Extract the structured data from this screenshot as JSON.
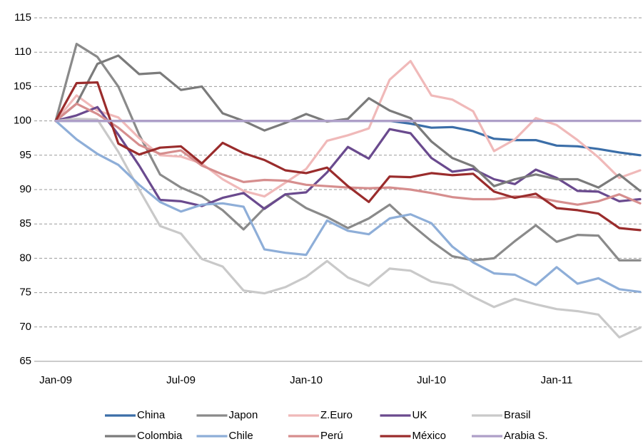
{
  "chart_data": {
    "type": "line",
    "categories": [
      "Jan-09",
      null,
      null,
      null,
      null,
      null,
      "Jul-09",
      null,
      null,
      null,
      null,
      null,
      "Jan-10",
      null,
      null,
      null,
      null,
      null,
      "Jul-10",
      null,
      null,
      null,
      null,
      null,
      "Jan-11",
      null,
      null,
      null,
      null
    ],
    "ylim": [
      65,
      115
    ],
    "yticks": [
      65,
      70,
      75,
      80,
      85,
      90,
      95,
      100,
      105,
      110,
      115
    ],
    "grid": true,
    "series": [
      {
        "name": "China",
        "color": "#3b6ea8",
        "values": [
          100,
          100,
          100,
          100,
          100,
          100,
          100,
          100,
          100,
          100,
          100,
          100,
          100,
          100,
          100,
          100,
          100,
          99.6,
          99,
          99.1,
          98.5,
          97.4,
          97.2,
          97.2,
          96.4,
          96.3,
          95.9,
          95.4,
          95
        ]
      },
      {
        "name": "Japon",
        "color": "#8a8a8a",
        "values": [
          100,
          111.2,
          109.3,
          105,
          98,
          92.2,
          90.3,
          89,
          87,
          84.2,
          87.3,
          89.3,
          87.3,
          86,
          84.4,
          85.8,
          87.8,
          85,
          82.5,
          80.3,
          79.7,
          80,
          82.5,
          84.8,
          82.4,
          83.4,
          83.3,
          79.7,
          79.7
        ]
      },
      {
        "name": "Z.Euro",
        "color": "#f0b9b9",
        "values": [
          100,
          103.7,
          101.5,
          100.5,
          97.5,
          95,
          94.8,
          93.8,
          91.5,
          89.8,
          89,
          91,
          93,
          97.1,
          97.9,
          98.9,
          106,
          108.7,
          103.7,
          103.1,
          101.4,
          95.6,
          97.3,
          100.4,
          99.4,
          97.2,
          94.7,
          91.7,
          92.8
        ]
      },
      {
        "name": "UK",
        "color": "#6a4a8e",
        "values": [
          100,
          100.8,
          102,
          98,
          93.5,
          88.5,
          88.3,
          87.6,
          88.8,
          89.5,
          87.2,
          89.3,
          89.6,
          92.5,
          96.2,
          94.5,
          98.8,
          98.2,
          94.6,
          92.6,
          93,
          91.5,
          90.8,
          92.9,
          91.7,
          89.8,
          89.7,
          88.3,
          88.6
        ]
      },
      {
        "name": "Brasil",
        "color": "#c9c9c9",
        "values": [
          100,
          100.3,
          100.2,
          95.5,
          90,
          84.7,
          83.6,
          79.9,
          78.8,
          75.3,
          74.9,
          75.8,
          77.3,
          79.6,
          77.2,
          76,
          78.5,
          78.2,
          76.6,
          76.1,
          74.4,
          72.9,
          74.1,
          73.3,
          72.6,
          72.3,
          71.8,
          68.5,
          69.9
        ]
      },
      {
        "name": "Colombia",
        "color": "#7b7b7b",
        "values": [
          100,
          102.5,
          108.3,
          109.5,
          106.8,
          107,
          104.5,
          105,
          101.1,
          100,
          98.6,
          99.7,
          101,
          99.9,
          100.3,
          103.3,
          101.5,
          100.4,
          97,
          94.6,
          93.4,
          90.5,
          91.5,
          92.2,
          91.5,
          91.5,
          90.3,
          92.2,
          89.8
        ]
      },
      {
        "name": "Chile",
        "color": "#8eaed8",
        "values": [
          100,
          97.3,
          95.2,
          93.6,
          90.7,
          88.2,
          86.8,
          87.8,
          88,
          87.5,
          81.3,
          80.8,
          80.5,
          85.5,
          84,
          83.5,
          85.8,
          86.4,
          85.1,
          81.7,
          79.4,
          77.8,
          77.6,
          76.1,
          78.7,
          76.3,
          77.1,
          75.5,
          75.1
        ]
      },
      {
        "name": "Perú",
        "color": "#d68e8e",
        "values": [
          100,
          102.5,
          101,
          99,
          96.5,
          95.2,
          95.7,
          93.5,
          92.2,
          91.1,
          91.4,
          91.3,
          90.7,
          90.5,
          90.3,
          90.2,
          90.3,
          90,
          89.5,
          88.9,
          88.6,
          88.6,
          89,
          88.9,
          88.3,
          87.8,
          88.3,
          89.3,
          88
        ]
      },
      {
        "name": "México",
        "color": "#9a2c2c",
        "values": [
          100,
          105.5,
          105.6,
          96.7,
          95.1,
          96.1,
          96.3,
          93.8,
          96.8,
          95.3,
          94.3,
          92.8,
          92.4,
          93.2,
          90.5,
          88.2,
          91.9,
          91.8,
          92.4,
          92.1,
          92.3,
          89.7,
          88.8,
          89.4,
          87.3,
          87,
          86.5,
          84.4,
          84.1
        ]
      },
      {
        "name": "Arabia S.",
        "color": "#ae9fc8",
        "values": [
          100,
          100,
          100,
          100,
          100,
          100,
          100,
          100,
          100,
          100,
          100,
          100,
          100,
          100,
          100,
          100,
          100,
          100,
          100,
          100,
          100,
          100,
          100,
          100,
          100,
          100,
          100,
          100,
          100
        ]
      }
    ]
  }
}
